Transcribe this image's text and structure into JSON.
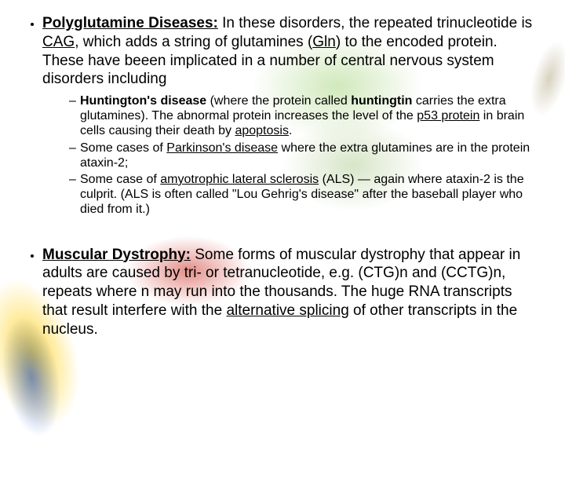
{
  "colors": {
    "text": "#000000",
    "background": "#ffffff",
    "accent_yellow": "#ffd21e",
    "accent_blue": "#1e50c8",
    "accent_red": "#cd3228",
    "accent_green": "#78be3c"
  },
  "typography": {
    "family": "Arial",
    "main_size_pt": 14,
    "sub_size_pt": 12,
    "bold_weight": 700
  },
  "bullets": [
    {
      "title": "Polyglutamine Diseases:",
      "body_parts": {
        "t1": " In these disorders, the repeated trinucleotide is ",
        "cag": "CAG",
        "t2": ", which adds a string of glutamines (",
        "gln": "Gln",
        "t3": ") to the encoded protein. These have beeen implicated in a number of central nervous system disorders including"
      },
      "sub": [
        {
          "h1": "Huntington's disease",
          "h2": " (where the protein called ",
          "h3": "huntingtin",
          "h4": " carries the extra glutamines). The abnormal protein increases the level of the ",
          "h5": "p53 protein",
          "h6": " in brain cells causing their death by ",
          "h7": "apoptosis",
          "h8": "."
        },
        {
          "p1": "Some cases of ",
          "p2": "Parkinson's disease",
          "p3": " where the extra glutamines are in the protein ataxin-2;"
        },
        {
          "a1": "Some case of ",
          "a2": "amyotrophic lateral sclerosis",
          "a3": " (ALS) — again where ataxin-2 is the culprit. (ALS is often called \"Lou Gehrig's disease\" after the baseball player who died from it.)"
        }
      ]
    },
    {
      "title": "Muscular Dystrophy:",
      "body_parts": {
        "m1": " Some forms of muscular dystrophy that appear in adults are caused by tri- or tetranucleotide, e.g. (CTG)n and (CCTG)n, repeats where n may run into the thousands. The huge RNA transcripts that result interfere with the ",
        "m2": "alternative splicing",
        "m3": " of other transcripts in the nucleus."
      }
    }
  ]
}
